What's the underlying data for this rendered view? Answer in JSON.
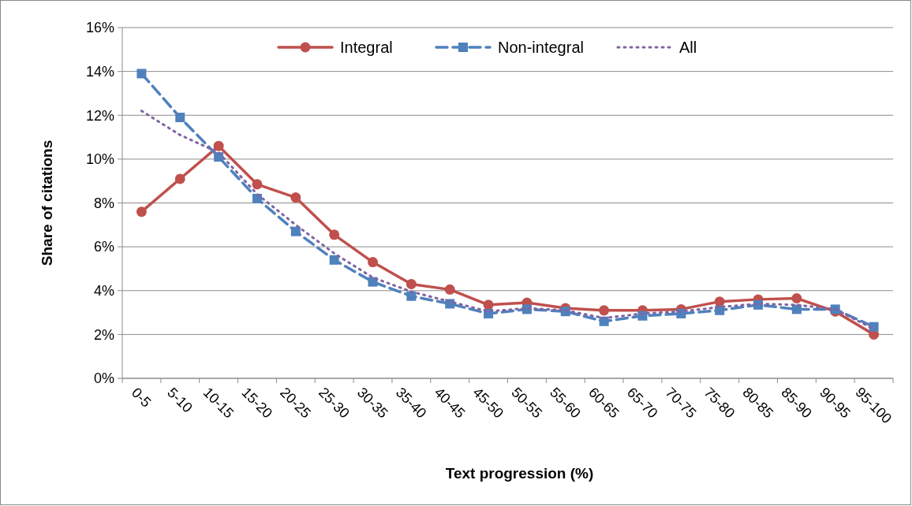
{
  "chart_data": {
    "type": "line",
    "xlabel": "Text progression  (%)",
    "ylabel": "Share of citations",
    "categories": [
      "0-5",
      "5-10",
      "10-15",
      "15-20",
      "20-25",
      "25-30",
      "30-35",
      "35-40",
      "40-45",
      "45-50",
      "50-55",
      "55-60",
      "60-65",
      "65-70",
      "70-75",
      "75-80",
      "80-85",
      "85-90",
      "90-95",
      "95-100"
    ],
    "ylim": [
      0,
      16
    ],
    "yticks": [
      {
        "value": 0,
        "label": "0%"
      },
      {
        "value": 2,
        "label": "2%"
      },
      {
        "value": 4,
        "label": "4%"
      },
      {
        "value": 6,
        "label": "6%"
      },
      {
        "value": 8,
        "label": "8%"
      },
      {
        "value": 10,
        "label": "10%"
      },
      {
        "value": 12,
        "label": "12%"
      },
      {
        "value": 14,
        "label": "14%"
      },
      {
        "value": 16,
        "label": "16%"
      }
    ],
    "grid": "y",
    "legend": "top",
    "series": [
      {
        "name": "Integral",
        "color": "#c0504d",
        "marker": "circle",
        "line_style": "solid",
        "values": [
          7.6,
          9.1,
          10.6,
          8.85,
          8.25,
          6.55,
          5.3,
          4.3,
          4.05,
          3.35,
          3.45,
          3.2,
          3.1,
          3.1,
          3.15,
          3.5,
          3.6,
          3.65,
          3.05,
          2.0
        ]
      },
      {
        "name": "Non-integral",
        "color": "#4f81bd",
        "marker": "square",
        "line_style": "dashed",
        "values": [
          13.9,
          11.9,
          10.1,
          8.2,
          6.7,
          5.4,
          4.4,
          3.75,
          3.4,
          2.95,
          3.15,
          3.05,
          2.6,
          2.85,
          2.95,
          3.1,
          3.35,
          3.15,
          3.15,
          2.35
        ]
      },
      {
        "name": "All",
        "color": "#8064a2",
        "marker": "none",
        "line_style": "dotted",
        "values": [
          12.2,
          11.1,
          10.3,
          8.4,
          7.0,
          5.7,
          4.6,
          3.95,
          3.5,
          3.05,
          3.2,
          3.1,
          2.75,
          2.95,
          3.05,
          3.25,
          3.4,
          3.35,
          3.15,
          2.25
        ]
      }
    ]
  }
}
